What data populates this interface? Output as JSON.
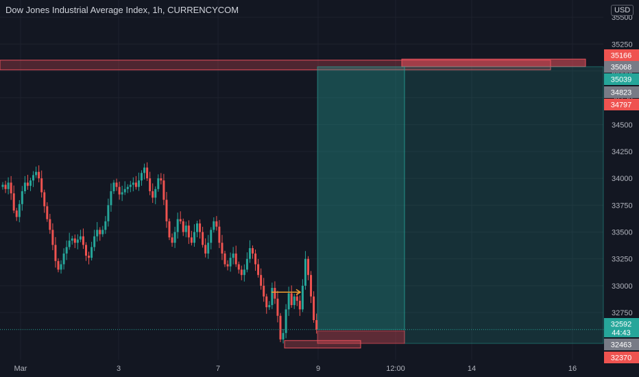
{
  "header": {
    "title": "Dow Jones Industrial Average Index, 1h, CURRENCYCOM",
    "currency": "USD"
  },
  "colors": {
    "background": "#131722",
    "grid": "#1e222d",
    "up": "#26a69a",
    "down": "#ef5350",
    "axis_text": "#b2b5be",
    "target_zone": "#2f6b68",
    "stop_zone": "#e8505b"
  },
  "chart_data": {
    "type": "candlestick",
    "title": "Dow Jones Industrial Average Index, 1h, CURRENCYCOM",
    "y_ticks": [
      32750,
      33000,
      33250,
      33500,
      33750,
      34000,
      34250,
      34500,
      34750,
      35000,
      35250,
      35500
    ],
    "ylim": [
      32310,
      35660
    ],
    "x_ticks": [
      "Mar",
      "3",
      "7",
      "9",
      "12:00",
      "14",
      "16"
    ],
    "grid": true,
    "price_tags": [
      {
        "value": "35166",
        "color": "#ef5350"
      },
      {
        "value": "35068",
        "color": "#787b86"
      },
      {
        "value": "35039",
        "color": "#26a69a"
      },
      {
        "value": "34823",
        "color": "#787b86"
      },
      {
        "value": "34797",
        "color": "#ef5350"
      },
      {
        "value": "32592",
        "color": "#26a69a",
        "countdown": "44:43"
      },
      {
        "value": "32463",
        "color": "#787b86"
      },
      {
        "value": "32370",
        "color": "#ef5350"
      }
    ],
    "last_price": 32592,
    "resistance_zone": {
      "low": 35010,
      "high": 35100
    },
    "position": {
      "entry": 32592,
      "target": 35039,
      "stop": 32463
    },
    "support_box": {
      "low": 32420,
      "high": 32490
    },
    "series": [
      {
        "x": 0,
        "c": 33940
      },
      {
        "x": 1,
        "c": 33900
      },
      {
        "x": 2,
        "c": 33960
      },
      {
        "x": 3,
        "c": 33860
      },
      {
        "x": 4,
        "c": 33700
      },
      {
        "x": 5,
        "c": 33640
      },
      {
        "x": 6,
        "c": 33760
      },
      {
        "x": 7,
        "c": 33880
      },
      {
        "x": 8,
        "c": 33960
      },
      {
        "x": 9,
        "c": 33930
      },
      {
        "x": 10,
        "c": 33980
      },
      {
        "x": 11,
        "c": 34030
      },
      {
        "x": 12,
        "c": 34060
      },
      {
        "x": 13,
        "c": 34000
      },
      {
        "x": 14,
        "c": 33870
      },
      {
        "x": 15,
        "c": 33740
      },
      {
        "x": 16,
        "c": 33620
      },
      {
        "x": 17,
        "c": 33520
      },
      {
        "x": 18,
        "c": 33380
      },
      {
        "x": 19,
        "c": 33230
      },
      {
        "x": 20,
        "c": 33150
      },
      {
        "x": 21,
        "c": 33200
      },
      {
        "x": 22,
        "c": 33300
      },
      {
        "x": 23,
        "c": 33360
      },
      {
        "x": 24,
        "c": 33420
      },
      {
        "x": 25,
        "c": 33440
      },
      {
        "x": 26,
        "c": 33400
      },
      {
        "x": 27,
        "c": 33430
      },
      {
        "x": 28,
        "c": 33460
      },
      {
        "x": 29,
        "c": 33380
      },
      {
        "x": 30,
        "c": 33280
      },
      {
        "x": 31,
        "c": 33260
      },
      {
        "x": 32,
        "c": 33360
      },
      {
        "x": 33,
        "c": 33460
      },
      {
        "x": 34,
        "c": 33520
      },
      {
        "x": 35,
        "c": 33480
      },
      {
        "x": 36,
        "c": 33520
      },
      {
        "x": 37,
        "c": 33600
      },
      {
        "x": 38,
        "c": 33750
      },
      {
        "x": 39,
        "c": 33880
      },
      {
        "x": 40,
        "c": 33960
      },
      {
        "x": 41,
        "c": 33920
      },
      {
        "x": 42,
        "c": 33850
      },
      {
        "x": 43,
        "c": 33870
      },
      {
        "x": 44,
        "c": 33900
      },
      {
        "x": 45,
        "c": 33920
      },
      {
        "x": 46,
        "c": 33940
      },
      {
        "x": 47,
        "c": 33960
      },
      {
        "x": 48,
        "c": 33920
      },
      {
        "x": 49,
        "c": 33980
      },
      {
        "x": 50,
        "c": 34050
      },
      {
        "x": 51,
        "c": 34100
      },
      {
        "x": 52,
        "c": 34000
      },
      {
        "x": 53,
        "c": 33880
      },
      {
        "x": 54,
        "c": 33820
      },
      {
        "x": 55,
        "c": 33900
      },
      {
        "x": 56,
        "c": 34000
      },
      {
        "x": 57,
        "c": 33980
      },
      {
        "x": 58,
        "c": 33800
      },
      {
        "x": 59,
        "c": 33600
      },
      {
        "x": 60,
        "c": 33450
      },
      {
        "x": 61,
        "c": 33400
      },
      {
        "x": 62,
        "c": 33500
      },
      {
        "x": 63,
        "c": 33620
      },
      {
        "x": 64,
        "c": 33600
      },
      {
        "x": 65,
        "c": 33500
      },
      {
        "x": 66,
        "c": 33560
      },
      {
        "x": 67,
        "c": 33450
      },
      {
        "x": 68,
        "c": 33400
      },
      {
        "x": 69,
        "c": 33500
      },
      {
        "x": 70,
        "c": 33580
      },
      {
        "x": 71,
        "c": 33500
      },
      {
        "x": 72,
        "c": 33380
      },
      {
        "x": 73,
        "c": 33300
      },
      {
        "x": 74,
        "c": 33400
      },
      {
        "x": 75,
        "c": 33520
      },
      {
        "x": 76,
        "c": 33600
      },
      {
        "x": 77,
        "c": 33550
      },
      {
        "x": 78,
        "c": 33400
      },
      {
        "x": 79,
        "c": 33300
      },
      {
        "x": 80,
        "c": 33200
      },
      {
        "x": 81,
        "c": 33180
      },
      {
        "x": 82,
        "c": 33260
      },
      {
        "x": 83,
        "c": 33300
      },
      {
        "x": 84,
        "c": 33200
      },
      {
        "x": 85,
        "c": 33150
      },
      {
        "x": 86,
        "c": 33100
      },
      {
        "x": 87,
        "c": 33150
      },
      {
        "x": 88,
        "c": 33250
      },
      {
        "x": 89,
        "c": 33350
      },
      {
        "x": 90,
        "c": 33300
      },
      {
        "x": 91,
        "c": 33200
      },
      {
        "x": 92,
        "c": 33100
      },
      {
        "x": 93,
        "c": 33000
      },
      {
        "x": 94,
        "c": 32900
      },
      {
        "x": 95,
        "c": 32800
      },
      {
        "x": 96,
        "c": 32820
      },
      {
        "x": 97,
        "c": 32980
      },
      {
        "x": 98,
        "c": 32880
      },
      {
        "x": 99,
        "c": 32720
      },
      {
        "x": 100,
        "c": 32500
      },
      {
        "x": 101,
        "c": 32560
      },
      {
        "x": 102,
        "c": 32780
      },
      {
        "x": 103,
        "c": 32930
      },
      {
        "x": 104,
        "c": 32820
      },
      {
        "x": 105,
        "c": 32900
      },
      {
        "x": 106,
        "c": 32860
      },
      {
        "x": 107,
        "c": 32780
      },
      {
        "x": 108,
        "c": 33000
      },
      {
        "x": 109,
        "c": 33250
      },
      {
        "x": 110,
        "c": 33100
      },
      {
        "x": 111,
        "c": 32900
      },
      {
        "x": 112,
        "c": 32680
      },
      {
        "x": 113,
        "c": 32592
      }
    ]
  }
}
